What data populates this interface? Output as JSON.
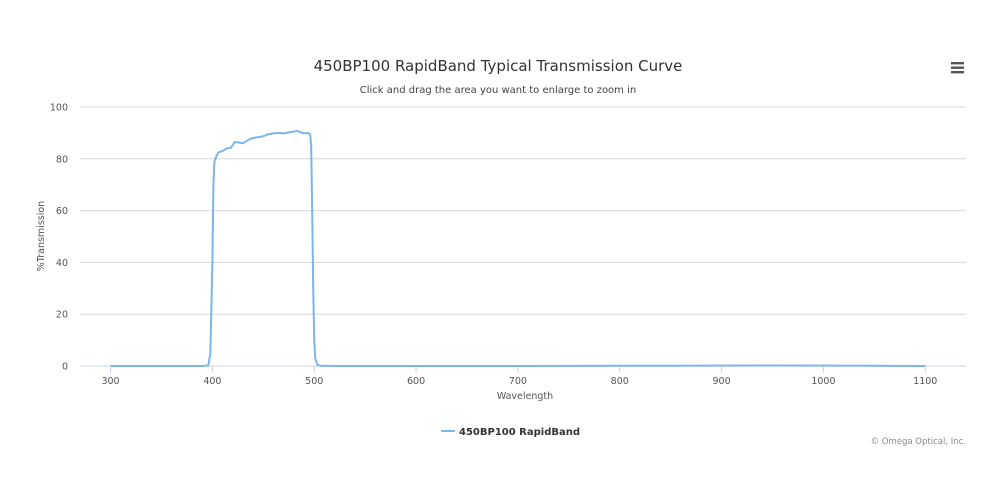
{
  "chart_data": {
    "type": "line",
    "title": "450BP100 RapidBand Typical Transmission Curve",
    "subtitle": "Click and drag the area you want to enlarge to zoom in",
    "xlabel": "Wavelength",
    "ylabel": "%Transmission",
    "xlim": [
      270,
      1140
    ],
    "ylim": [
      0,
      100
    ],
    "x_ticks": [
      300,
      400,
      500,
      600,
      700,
      800,
      900,
      1000,
      1100
    ],
    "y_ticks": [
      0,
      20,
      40,
      60,
      80,
      100
    ],
    "grid": true,
    "legend_position": "bottom-center",
    "series": [
      {
        "name": "450BP100 RapidBand",
        "color": "#7cb5ec",
        "points": [
          [
            300,
            0
          ],
          [
            390,
            0
          ],
          [
            396,
            0.2
          ],
          [
            398,
            5
          ],
          [
            400,
            40
          ],
          [
            401,
            70
          ],
          [
            402,
            79
          ],
          [
            404,
            81
          ],
          [
            406,
            82.5
          ],
          [
            410,
            83
          ],
          [
            414,
            84
          ],
          [
            418,
            84.2
          ],
          [
            422,
            86.5
          ],
          [
            426,
            86.3
          ],
          [
            430,
            86
          ],
          [
            434,
            87
          ],
          [
            438,
            87.8
          ],
          [
            442,
            88.2
          ],
          [
            446,
            88.4
          ],
          [
            450,
            88.7
          ],
          [
            455,
            89.5
          ],
          [
            460,
            89.8
          ],
          [
            465,
            90
          ],
          [
            470,
            89.8
          ],
          [
            475,
            90.2
          ],
          [
            480,
            90.5
          ],
          [
            483,
            90.8
          ],
          [
            486,
            90.3
          ],
          [
            490,
            89.8
          ],
          [
            494,
            90
          ],
          [
            496,
            89.5
          ],
          [
            497,
            85
          ],
          [
            498,
            60
          ],
          [
            499,
            30
          ],
          [
            500,
            10
          ],
          [
            501,
            3
          ],
          [
            503,
            0.5
          ],
          [
            506,
            0.1
          ],
          [
            520,
            0
          ],
          [
            700,
            0
          ],
          [
            850,
            0.1
          ],
          [
            950,
            0.2
          ],
          [
            1050,
            0.1
          ],
          [
            1100,
            0
          ]
        ]
      }
    ]
  },
  "legend": {
    "label": "450BP100 RapidBand"
  },
  "credits": "© Omega Optical, Inc.",
  "menu_icon": "hamburger-menu-icon"
}
